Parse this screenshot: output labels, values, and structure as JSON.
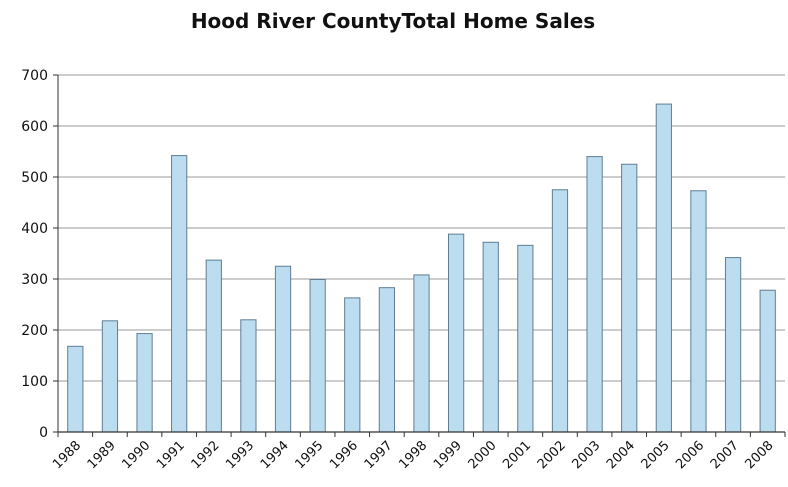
{
  "chart_data": {
    "type": "bar",
    "title": "Hood River CountyTotal Home Sales",
    "xlabel": "",
    "ylabel": "",
    "categories": [
      "1988",
      "1989",
      "1990",
      "1991",
      "1992",
      "1993",
      "1994",
      "1995",
      "1996",
      "1997",
      "1998",
      "1999",
      "2000",
      "2001",
      "2002",
      "2003",
      "2004",
      "2005",
      "2006",
      "2007",
      "2008"
    ],
    "series": [
      {
        "values": [
          168,
          218,
          193,
          542,
          337,
          220,
          325,
          299,
          263,
          283,
          308,
          388,
          372,
          366,
          475,
          540,
          525,
          643,
          473,
          342,
          278
        ]
      }
    ],
    "ylim": [
      0,
      700
    ],
    "yticks": [
      "0",
      "100",
      "200",
      "300",
      "400",
      "500",
      "600",
      "700"
    ],
    "grid": true,
    "legend": "none",
    "colors": {
      "bar_fill": "#bcdcef",
      "bar_stroke": "#5f7e95",
      "grid": "#9a9a9a",
      "axis": "#333333",
      "text": "#111111"
    }
  }
}
